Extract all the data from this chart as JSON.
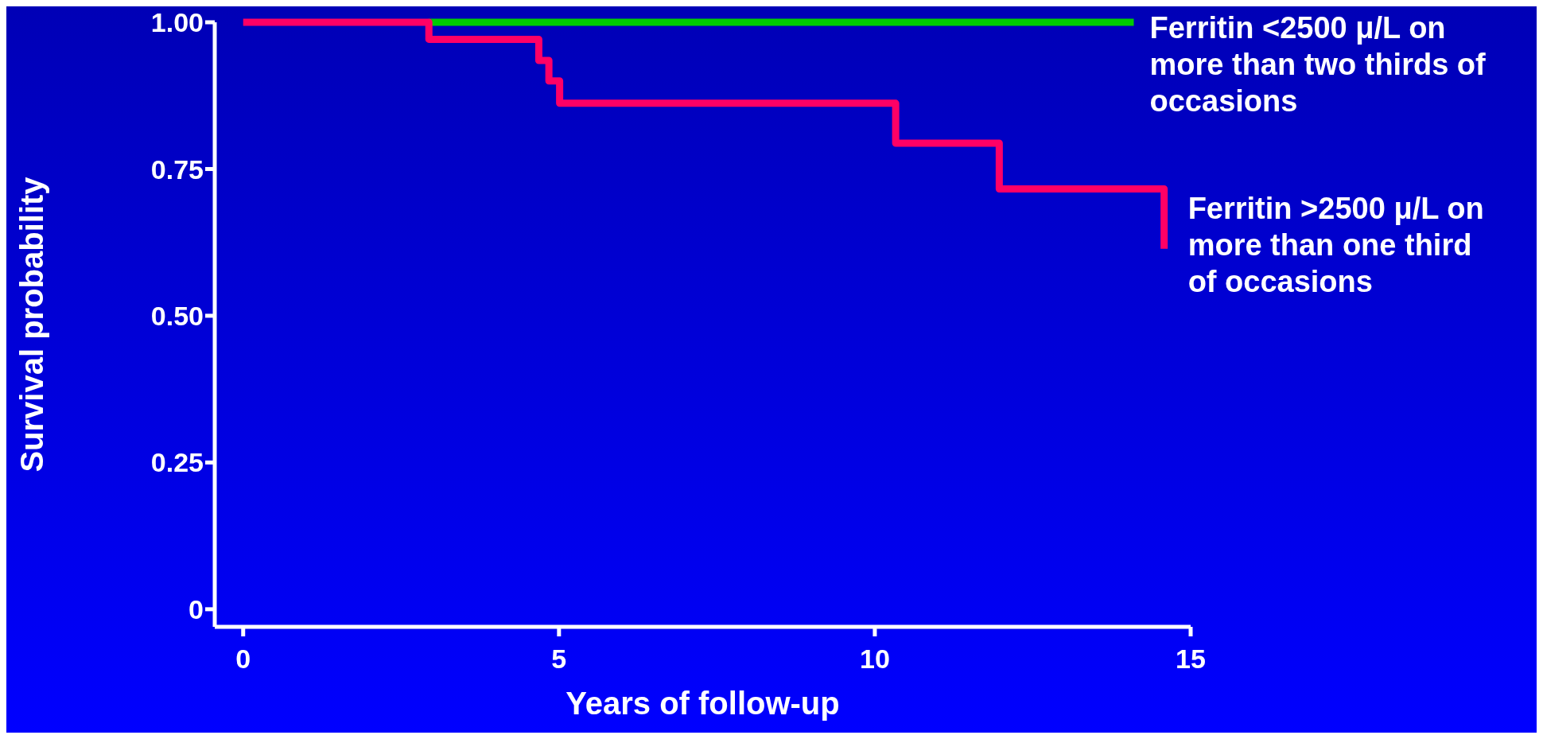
{
  "chart_data": {
    "type": "step",
    "xlabel": "Years of follow-up",
    "ylabel": "Survival probability",
    "xlim": [
      -0.45,
      15
    ],
    "xticks": [
      0,
      5,
      10,
      15
    ],
    "ylim": [
      -0.03,
      1.0
    ],
    "yticks": [
      {
        "value": 0,
        "label": "0"
      },
      {
        "value": 0.25,
        "label": "0.25"
      },
      {
        "value": 0.5,
        "label": "0.50"
      },
      {
        "value": 0.75,
        "label": "0.75"
      },
      {
        "value": 1,
        "label": "1.00"
      }
    ],
    "grid": false,
    "legend": false,
    "marker": "none",
    "line_style": "solid",
    "series": [
      {
        "name": "Ferritin <2500 μ/L on more than two thirds of occasions",
        "color": "#00cc00",
        "x": [
          2.94,
          14.1
        ],
        "values": [
          1,
          1
        ]
      },
      {
        "name": "Ferritin >2500 μ/L on more than one third of occasions",
        "color": "#ff0066",
        "x": [
          0,
          2.94,
          4.68,
          4.84,
          5.01,
          10.33,
          11.97,
          14.58
        ],
        "values": [
          1,
          0.971,
          0.935,
          0.9,
          0.862,
          0.794,
          0.716,
          0.614
        ]
      }
    ]
  }
}
